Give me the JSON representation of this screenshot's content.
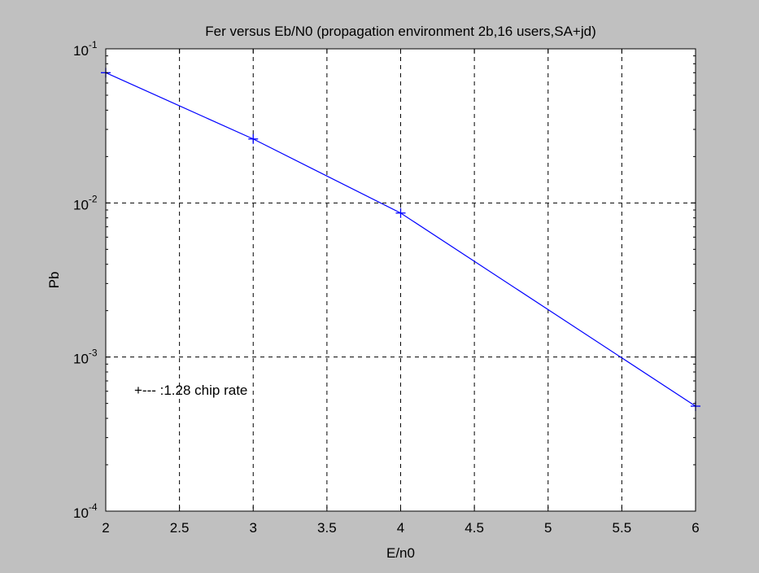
{
  "chart_data": {
    "type": "line",
    "title": "Fer versus Eb/N0 (propagation environment 2b,16 users,SA+jd)",
    "xlabel": "E/n0",
    "ylabel": "Pb",
    "xlim": [
      2,
      6
    ],
    "ylim": [
      0.0001,
      0.1
    ],
    "y_scale": "log",
    "grid": true,
    "grid_style": "dashed",
    "x_ticks": [
      2,
      2.5,
      3,
      3.5,
      4,
      4.5,
      5,
      5.5,
      6
    ],
    "x_tick_labels": [
      "2",
      "2.5",
      "3",
      "3.5",
      "4",
      "4.5",
      "5",
      "5.5",
      "6"
    ],
    "y_ticks": [
      0.0001,
      0.001,
      0.01,
      0.1
    ],
    "y_tick_labels": [
      {
        "base": "10",
        "exp": "-4"
      },
      {
        "base": "10",
        "exp": "-3"
      },
      {
        "base": "10",
        "exp": "-2"
      },
      {
        "base": "10",
        "exp": "-1"
      }
    ],
    "series": [
      {
        "marker": "+",
        "color": "#0000ff",
        "x": [
          2,
          3,
          4,
          6
        ],
        "y": [
          0.07,
          0.026,
          0.0086,
          0.00048
        ]
      }
    ],
    "annotation": "+--- :1.28 chip rate"
  }
}
